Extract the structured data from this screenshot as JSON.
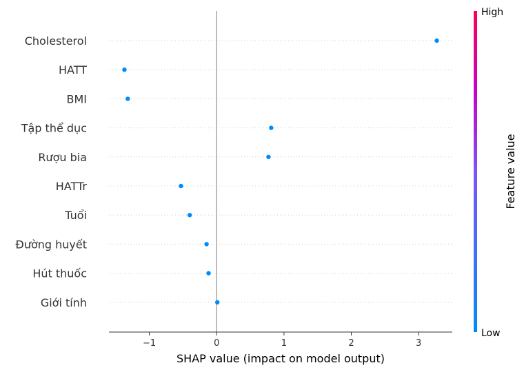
{
  "chart_data": {
    "type": "scatter",
    "xlabel": "SHAP value (impact on model output)",
    "xlim": [
      -1.6,
      3.5
    ],
    "xticks": [
      -1,
      0,
      1,
      2,
      3
    ],
    "xtick_labels": [
      "−1",
      "0",
      "1",
      "2",
      "3"
    ],
    "features": [
      "Cholesterol",
      "HATT",
      "BMI",
      "Tập thể dục",
      "Rượu bia",
      "HATTr",
      "Tuổi",
      "Đường huyết",
      "Hút thuốc",
      "Giới tính"
    ],
    "points": [
      {
        "feature": "Cholesterol",
        "x": 3.27,
        "value_level": "low"
      },
      {
        "feature": "HATT",
        "x": -1.37,
        "value_level": "low"
      },
      {
        "feature": "BMI",
        "x": -1.32,
        "value_level": "low"
      },
      {
        "feature": "Tập thể dục",
        "x": 0.81,
        "value_level": "low"
      },
      {
        "feature": "Rượu bia",
        "x": 0.77,
        "value_level": "low"
      },
      {
        "feature": "HATTr",
        "x": -0.53,
        "value_level": "low"
      },
      {
        "feature": "Tuổi",
        "x": -0.4,
        "value_level": "low"
      },
      {
        "feature": "Đường huyết",
        "x": -0.15,
        "value_level": "low"
      },
      {
        "feature": "Hút thuốc",
        "x": -0.12,
        "value_level": "low"
      },
      {
        "feature": "Giới tính",
        "x": 0.01,
        "value_level": "low"
      }
    ],
    "zero_line": 0,
    "grid": "dotted horizontal rows",
    "colorbar": {
      "title": "Feature value",
      "high_label": "High",
      "low_label": "Low",
      "high_color": "#ff0052",
      "low_color": "#008bfb"
    },
    "point_color": "#008bfb"
  }
}
